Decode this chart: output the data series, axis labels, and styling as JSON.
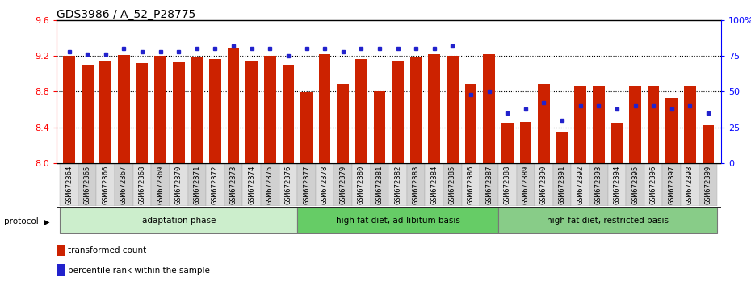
{
  "title": "GDS3986 / A_52_P28775",
  "samples": [
    "GSM672364",
    "GSM672365",
    "GSM672366",
    "GSM672367",
    "GSM672368",
    "GSM672369",
    "GSM672370",
    "GSM672371",
    "GSM672372",
    "GSM672373",
    "GSM672374",
    "GSM672375",
    "GSM672376",
    "GSM672377",
    "GSM672378",
    "GSM672379",
    "GSM672380",
    "GSM672381",
    "GSM672382",
    "GSM672383",
    "GSM672384",
    "GSM672385",
    "GSM672386",
    "GSM672387",
    "GSM672388",
    "GSM672389",
    "GSM672390",
    "GSM672391",
    "GSM672392",
    "GSM672393",
    "GSM672394",
    "GSM672395",
    "GSM672396",
    "GSM672397",
    "GSM672398",
    "GSM672399"
  ],
  "bar_values": [
    9.2,
    9.1,
    9.14,
    9.21,
    9.12,
    9.2,
    9.13,
    9.19,
    9.16,
    9.28,
    9.15,
    9.2,
    9.1,
    8.79,
    9.22,
    8.88,
    9.16,
    8.8,
    9.15,
    9.18,
    9.22,
    9.2,
    8.88,
    9.22,
    8.45,
    8.46,
    8.88,
    8.35,
    8.86,
    8.87,
    8.45,
    8.87,
    8.87,
    8.73,
    8.86,
    8.42
  ],
  "percentile_values": [
    78,
    76,
    76,
    80,
    78,
    78,
    78,
    80,
    80,
    82,
    80,
    80,
    75,
    80,
    80,
    78,
    80,
    80,
    80,
    80,
    80,
    82,
    48,
    50,
    35,
    38,
    42,
    30,
    40,
    40,
    38,
    40,
    40,
    38,
    40,
    35
  ],
  "ylim_left": [
    8.0,
    9.6
  ],
  "ylim_right": [
    0,
    100
  ],
  "yticks_left": [
    8.0,
    8.4,
    8.8,
    9.2,
    9.6
  ],
  "yticks_right": [
    0,
    25,
    50,
    75,
    100
  ],
  "ytick_labels_right": [
    "0",
    "25",
    "50",
    "75",
    "100%"
  ],
  "bar_color": "#cc2200",
  "marker_color": "#2222cc",
  "groups": [
    {
      "label": "adaptation phase",
      "start": 0,
      "end": 13,
      "color": "#cceecc"
    },
    {
      "label": "high fat diet, ad-libitum basis",
      "start": 13,
      "end": 24,
      "color": "#66cc66"
    },
    {
      "label": "high fat diet, restricted basis",
      "start": 24,
      "end": 36,
      "color": "#88cc88"
    }
  ],
  "legend_items": [
    {
      "label": "transformed count",
      "color": "#cc2200"
    },
    {
      "label": "percentile rank within the sample",
      "color": "#2222cc"
    }
  ],
  "protocol_label": "protocol",
  "background_color": "#ffffff",
  "title_fontsize": 10,
  "tick_fontsize": 7
}
